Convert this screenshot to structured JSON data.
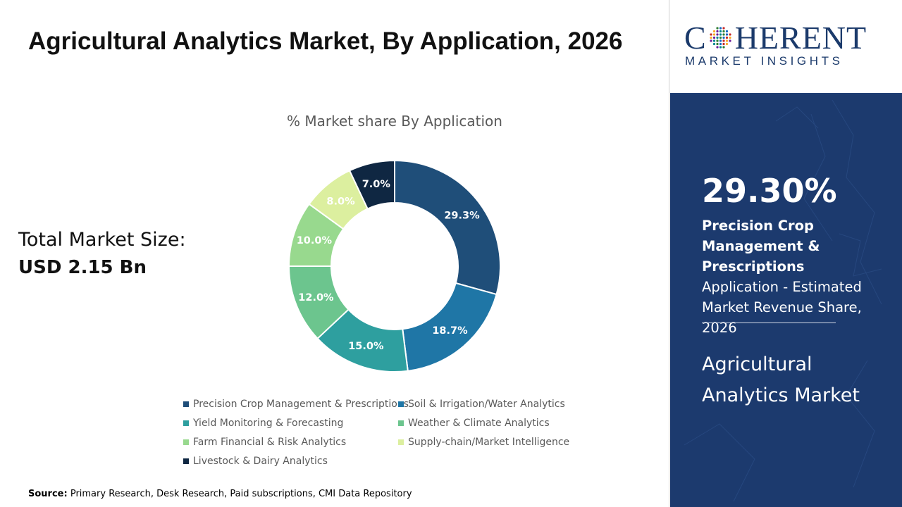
{
  "title": "Agricultural Analytics Market, By Application, 2026",
  "market_size": {
    "label": "Total Market Size:",
    "value": "USD 2.15 Bn"
  },
  "source": {
    "label": "Source:",
    "text": "Primary Research, Desk Research, Paid subscriptions, CMI Data Repository"
  },
  "logo": {
    "word_before": "C",
    "word_after": "HERENT",
    "subtitle": "MARKET INSIGHTS",
    "color": "#1b3a6b"
  },
  "highlight": {
    "percent": "29.30%",
    "segment_bold": "Precision Crop Management & Prescriptions",
    "description": "Application - Estimated Market Revenue Share, 2026",
    "market_name": "Agricultural Analytics Market",
    "background": "#1c3a6e"
  },
  "chart_data": {
    "type": "pie",
    "donut": true,
    "title": "% Market share By Application",
    "legend_position": "bottom",
    "slices": [
      {
        "label": "Precision Crop Management & Prescriptions",
        "value": 29.3,
        "display": "29.3%",
        "color": "#1f4e79"
      },
      {
        "label": "Soil & Irrigation/Water Analytics",
        "value": 18.7,
        "display": "18.7%",
        "color": "#1f76a6"
      },
      {
        "label": "Yield Monitoring & Forecasting",
        "value": 15.0,
        "display": "15.0%",
        "color": "#2e9f9f"
      },
      {
        "label": "Weather & Climate Analytics",
        "value": 12.0,
        "display": "12.0%",
        "color": "#6cc58e"
      },
      {
        "label": "Farm Financial & Risk Analytics",
        "value": 10.0,
        "display": "10.0%",
        "color": "#98d98e"
      },
      {
        "label": "Supply-chain/Market Intelligence",
        "value": 8.0,
        "display": "8.0%",
        "color": "#dcef9f"
      },
      {
        "label": "Livestock & Dairy Analytics",
        "value": 7.0,
        "display": "7.0%",
        "color": "#0f2742"
      }
    ]
  }
}
